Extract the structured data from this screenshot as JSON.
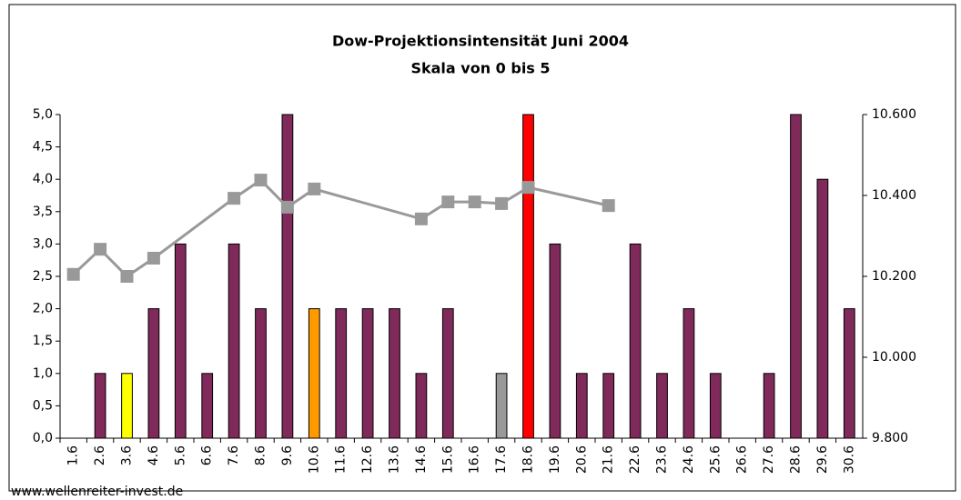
{
  "chart_data": {
    "type": "bar",
    "title": "Dow-Projektionsintensität Juni 2004",
    "subtitle": "Skala von 0 bis 5",
    "source": "www.wellenreiter-invest.de",
    "categories": [
      "1.6",
      "2.6",
      "3.6",
      "4.6",
      "5.6",
      "6.6",
      "7.6",
      "8.6",
      "9.6",
      "10.6",
      "11.6",
      "12.6",
      "13.6",
      "14.6",
      "15.6",
      "16.6",
      "17.6",
      "18.6",
      "19.6",
      "20.6",
      "21.6",
      "22.6",
      "23.6",
      "24.6",
      "25.6",
      "26.6",
      "27.6",
      "28.6",
      "29.6",
      "30.6"
    ],
    "values": [
      0,
      1,
      1,
      2,
      3,
      1,
      3,
      2,
      5,
      2,
      2,
      2,
      2,
      1,
      2,
      0,
      1,
      5,
      3,
      1,
      1,
      3,
      1,
      2,
      1,
      0,
      1,
      5,
      4,
      2
    ],
    "colors": [
      "#7f2a5a",
      "#7f2a5a",
      "#ffff00",
      "#7f2a5a",
      "#7f2a5a",
      "#7f2a5a",
      "#7f2a5a",
      "#7f2a5a",
      "#7f2a5a",
      "#ff9900",
      "#7f2a5a",
      "#7f2a5a",
      "#7f2a5a",
      "#7f2a5a",
      "#7f2a5a",
      "#7f2a5a",
      "#999999",
      "#ff0000",
      "#7f2a5a",
      "#7f2a5a",
      "#7f2a5a",
      "#7f2a5a",
      "#7f2a5a",
      "#7f2a5a",
      "#7f2a5a",
      "#7f2a5a",
      "#7f2a5a",
      "#7f2a5a",
      "#7f2a5a",
      "#7f2a5a"
    ],
    "line": {
      "axis": "y2",
      "color": "#999999",
      "categories": [
        "1.6",
        "2.6",
        "3.6",
        "4.6",
        "7.6",
        "8.6",
        "9.6",
        "10.6",
        "14.6",
        "15.6",
        "16.6",
        "17.6",
        "18.6",
        "21.6"
      ],
      "values": [
        10205,
        10267,
        10200,
        10245,
        10393,
        10438,
        10371,
        10416,
        10342,
        10384,
        10384,
        10380,
        10420,
        10375
      ]
    },
    "ylim": [
      0,
      5
    ],
    "yticks": [
      {
        "value": 0,
        "label": "0,0"
      },
      {
        "value": 0.5,
        "label": "0,5"
      },
      {
        "value": 1,
        "label": "1,0"
      },
      {
        "value": 1.5,
        "label": "1,5"
      },
      {
        "value": 2,
        "label": "2,0"
      },
      {
        "value": 2.5,
        "label": "2,5"
      },
      {
        "value": 3,
        "label": "3,0"
      },
      {
        "value": 3.5,
        "label": "3,5"
      },
      {
        "value": 4,
        "label": "4,0"
      },
      {
        "value": 4.5,
        "label": "4,5"
      },
      {
        "value": 5,
        "label": "5,0"
      }
    ],
    "y2lim": [
      9800,
      10600
    ],
    "y2ticks": [
      {
        "value": 9800,
        "label": "9.800"
      },
      {
        "value": 10000,
        "label": "10.000"
      },
      {
        "value": 10200,
        "label": "10.200"
      },
      {
        "value": 10400,
        "label": "10.400"
      },
      {
        "value": 10600,
        "label": "10.600"
      }
    ]
  }
}
